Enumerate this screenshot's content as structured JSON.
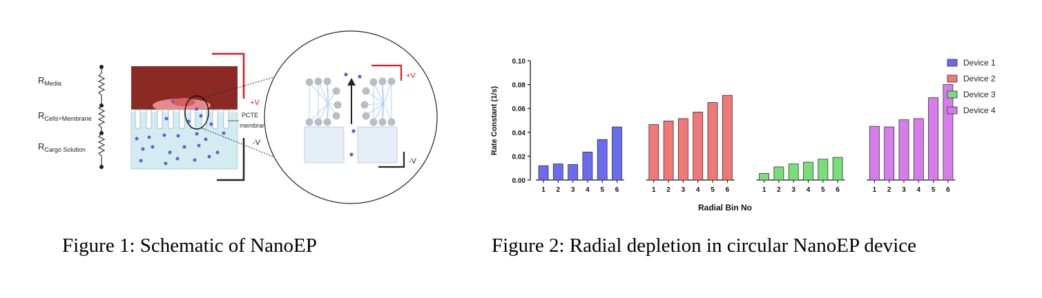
{
  "figure1": {
    "caption": "Figure 1: Schematic of NanoEP",
    "resistors": [
      {
        "main": "R",
        "sub": "Media"
      },
      {
        "main": "R",
        "sub": "Cells+Membrane"
      },
      {
        "main": "R",
        "sub": "Cargo Solution"
      }
    ],
    "pos_label": "+V",
    "neg_label": "-V",
    "membrane_label_1": "PCTE",
    "membrane_label_2": "membrane",
    "zoom_pos_label": "+V",
    "zoom_neg_label": "-V",
    "colors": {
      "media": "#8b2a22",
      "cargo": "#d3ecf2",
      "particle": "#6a5acd",
      "electrode_pos": "#e0191e",
      "electrode_neg": "#222222"
    }
  },
  "figure2": {
    "caption": "Figure 2: Radial depletion in circular NanoEP device",
    "chart_data": {
      "type": "bar",
      "xlabel": "Radial  Bin No",
      "ylabel": "Rate Constant (1/s)",
      "ylim": [
        0,
        0.1
      ],
      "yticks": [
        "0.00",
        "0.02",
        "0.04",
        "0.06",
        "0.08",
        "0.10"
      ],
      "categories": [
        "1",
        "2",
        "3",
        "4",
        "5",
        "6"
      ],
      "legend_position": "right",
      "series": [
        {
          "name": "Device 1",
          "color": "#6b6bf0",
          "values": [
            0.012,
            0.0135,
            0.013,
            0.0235,
            0.034,
            0.0445
          ]
        },
        {
          "name": "Device 2",
          "color": "#f07878",
          "values": [
            0.0465,
            0.0495,
            0.0515,
            0.057,
            0.065,
            0.071
          ]
        },
        {
          "name": "Device 3",
          "color": "#78de78",
          "values": [
            0.0055,
            0.011,
            0.0135,
            0.015,
            0.0175,
            0.019
          ]
        },
        {
          "name": "Device 4",
          "color": "#d77cec",
          "values": [
            0.045,
            0.0445,
            0.0505,
            0.0515,
            0.069,
            0.08
          ]
        }
      ]
    }
  }
}
